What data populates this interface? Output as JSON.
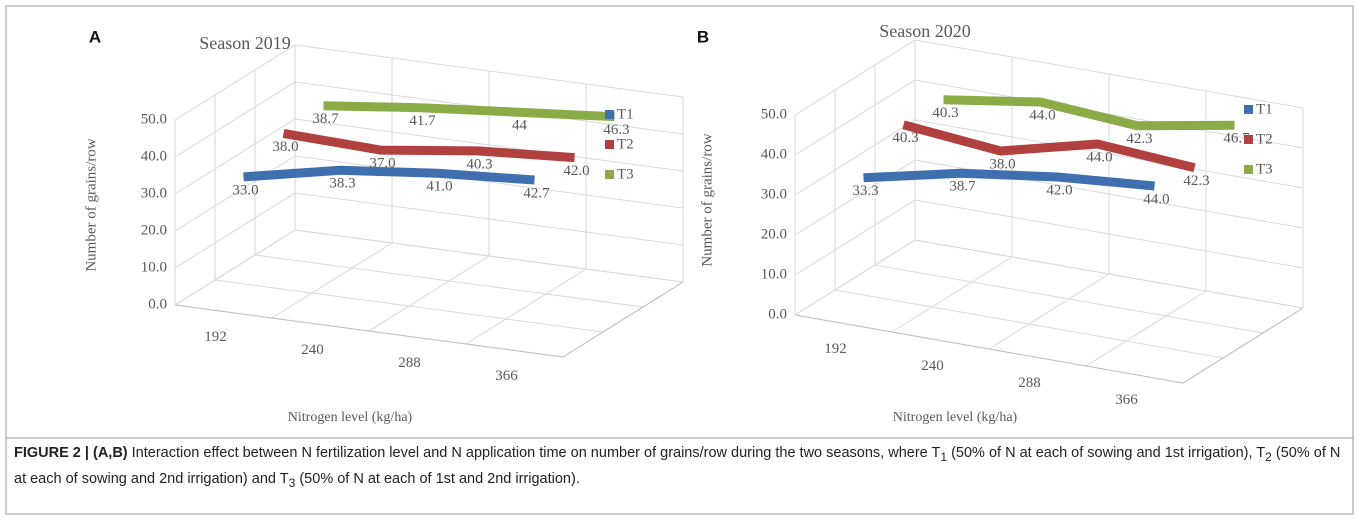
{
  "chart_data": [
    {
      "type": "line3d",
      "panel": "A",
      "title": "Season 2019",
      "x_label": "Nitrogen level (kg/ha)",
      "y_label": "Number of grains/row",
      "categories": [
        "192",
        "240",
        "288",
        "366"
      ],
      "series": [
        {
          "name": "T1",
          "color": "#3f6fae",
          "values": [
            33.0,
            38.3,
            41.0,
            42.7
          ],
          "value_labels": [
            "33.0",
            "38.3",
            "41.0",
            "42.7"
          ]
        },
        {
          "name": "T2",
          "color": "#b0413e",
          "values": [
            38.0,
            37.0,
            40.3,
            42.0
          ],
          "value_labels": [
            "38.0",
            "37.0",
            "40.3",
            "42.0"
          ]
        },
        {
          "name": "T3",
          "color": "#8aab45",
          "values": [
            38.7,
            41.7,
            44,
            46.3
          ],
          "value_labels": [
            "38.7",
            "41.7",
            "44",
            "46.3"
          ]
        }
      ],
      "ylim": [
        0,
        50
      ],
      "yticks": [
        {
          "value": 0,
          "label": "0.0"
        },
        {
          "value": 10,
          "label": "10.0"
        },
        {
          "value": 20,
          "label": "20.0"
        },
        {
          "value": 30,
          "label": "30.0"
        },
        {
          "value": 40,
          "label": "40.0"
        },
        {
          "value": 50,
          "label": "50.0"
        }
      ],
      "grid": true
    },
    {
      "type": "line3d",
      "panel": "B",
      "title": "Season 2020",
      "x_label": "Nitrogen level (kg/ha)",
      "y_label": "Number of grains/row",
      "categories": [
        "192",
        "240",
        "288",
        "366"
      ],
      "series": [
        {
          "name": "T1",
          "color": "#3f6fae",
          "values": [
            33.3,
            38.7,
            42.0,
            44.0
          ],
          "value_labels": [
            "33.3",
            "38.7",
            "42.0",
            "44.0"
          ]
        },
        {
          "name": "T2",
          "color": "#b0413e",
          "values": [
            40.3,
            38.0,
            44.0,
            42.3
          ],
          "value_labels": [
            "40.3",
            "38.0",
            "44.0",
            "42.3"
          ]
        },
        {
          "name": "T3",
          "color": "#8aab45",
          "values": [
            40.3,
            44.0,
            42.3,
            46.7
          ],
          "value_labels": [
            "40.3",
            "44.0",
            "42.3",
            "46.7"
          ]
        }
      ],
      "ylim": [
        0,
        50
      ],
      "yticks": [
        {
          "value": 0,
          "label": "0.0"
        },
        {
          "value": 10,
          "label": "10.0"
        },
        {
          "value": 20,
          "label": "20.0"
        },
        {
          "value": 30,
          "label": "30.0"
        },
        {
          "value": 40,
          "label": "40.0"
        },
        {
          "value": 50,
          "label": "50.0"
        }
      ],
      "grid": true
    }
  ],
  "caption": {
    "label": "FIGURE 2 | (A,B)",
    "parts": [
      " Interaction effect between N fertilization level and N application time on number of grains/row during the two seasons, where T",
      "1",
      " (50% of N at each of sowing and 1st irrigation), T",
      "2",
      " (50% of N at each of sowing and 2nd irrigation) and T",
      "3",
      " (50% of N at each of 1st and 2nd irrigation)."
    ]
  }
}
